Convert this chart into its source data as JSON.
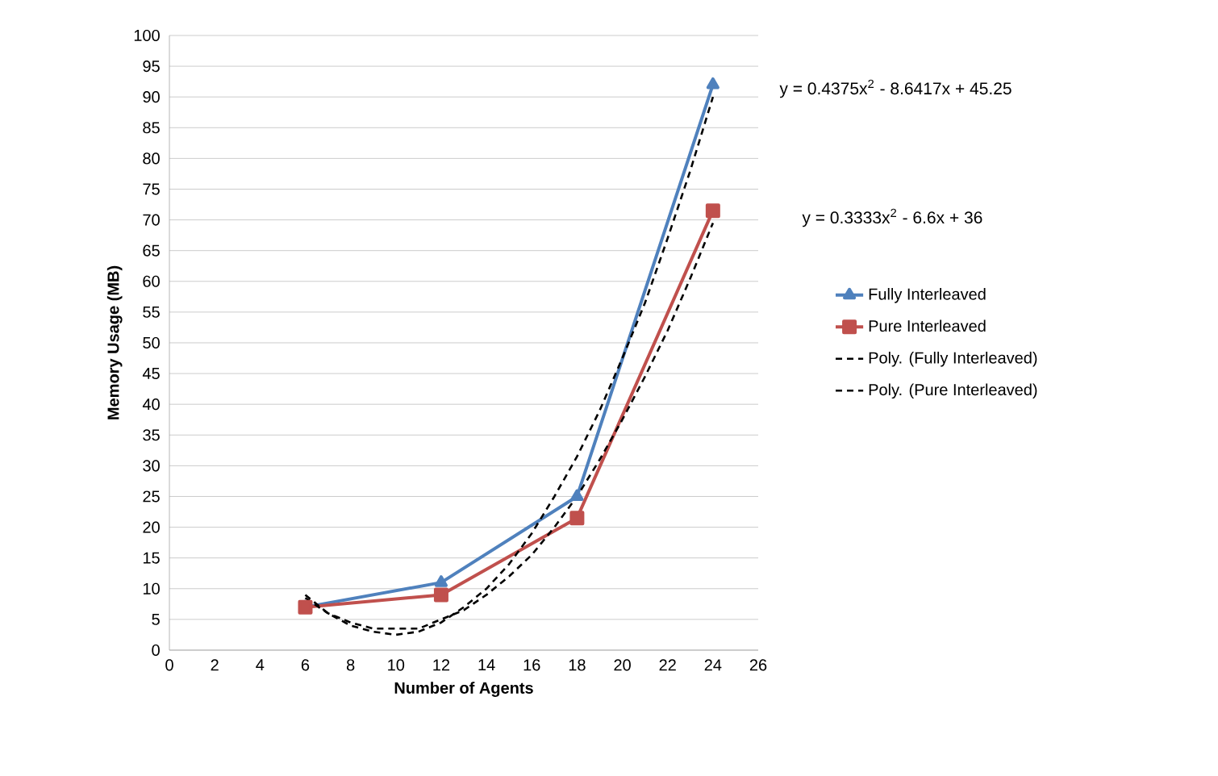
{
  "chart_data": {
    "type": "line",
    "xlabel": "Number of Agents",
    "ylabel": "Memory Usage (MB)",
    "xlim": [
      0,
      26
    ],
    "xticks": [
      0,
      2,
      4,
      6,
      8,
      10,
      12,
      14,
      16,
      18,
      20,
      22,
      24,
      26
    ],
    "ylim": [
      0,
      100
    ],
    "yticks": [
      0,
      5,
      10,
      15,
      20,
      25,
      30,
      35,
      40,
      45,
      50,
      55,
      60,
      65,
      70,
      75,
      80,
      85,
      90,
      95,
      100
    ],
    "grid": "y",
    "legend": "right",
    "annotations": [
      "y = 0.4375x$^{2}$ - 8.6417x + 45.25",
      "y = 0.3333x$^{2}$ - 6.6x + 36"
    ],
    "series": [
      {
        "name": "Fully Interleaved",
        "color": "#4f81bd",
        "marker": "triangle",
        "line_style": "solid",
        "x": [
          6,
          12,
          18,
          24
        ],
        "values": [
          7,
          11,
          25,
          92
        ]
      },
      {
        "name": "Pure Interleaved",
        "color": "#c0504d",
        "marker": "square",
        "line_style": "solid",
        "x": [
          6,
          12,
          18,
          24
        ],
        "values": [
          7,
          9,
          21.5,
          71.5
        ]
      },
      {
        "name": "Poly. (Fully Interleaved)",
        "color": "#000000",
        "marker": "none",
        "line_style": "dashed",
        "x": [
          6,
          7,
          8,
          9,
          10,
          11,
          12,
          13,
          14,
          15,
          16,
          17,
          18,
          19,
          20,
          21,
          22,
          23,
          24
        ],
        "values": [
          9,
          6,
          4,
          3,
          2.5,
          3,
          4.5,
          7,
          10,
          14,
          19,
          25,
          31.5,
          39,
          47.5,
          56.5,
          67,
          78,
          90
        ]
      },
      {
        "name": "Poly. (Pure Interleaved)",
        "color": "#000000",
        "marker": "none",
        "line_style": "dashed",
        "x": [
          6,
          7,
          8,
          9,
          10,
          11,
          12,
          13,
          14,
          15,
          16,
          17,
          18,
          19,
          20,
          21,
          22,
          23,
          24
        ],
        "values": [
          8.5,
          6,
          4.5,
          3.5,
          3.5,
          3.5,
          5,
          6.5,
          9,
          12,
          15.5,
          20,
          25,
          31,
          37.5,
          44.5,
          52,
          60.5,
          69.5
        ]
      }
    ]
  }
}
